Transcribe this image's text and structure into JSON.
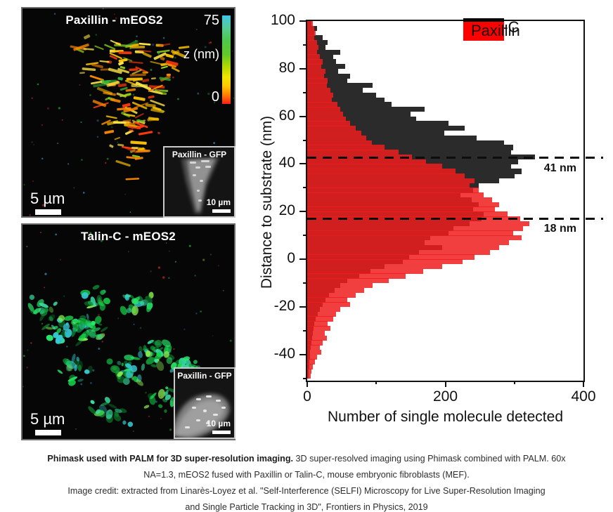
{
  "panels": {
    "paxillin": {
      "title": "Paxillin - mEOS2",
      "scale_bar": "5 µm",
      "colorbar": {
        "top_label": "75",
        "axis_label": "z (nm)",
        "bottom_label": "0"
      },
      "palette": [
        "#ff3b10",
        "#ff8a00",
        "#ffc400",
        "#ffe84a",
        "#9ade20",
        "#38b43c"
      ],
      "inset": {
        "title": "Paxillin - GFP",
        "scale_bar": "10 µm"
      }
    },
    "talin": {
      "title": "Talin-C - mEOS2",
      "scale_bar": "5 µm",
      "palette": [
        "#17d34a",
        "#2ae96c",
        "#0f9e38",
        "#39dca4",
        "#35c8d2",
        "#83e94e",
        "#0b7a2a"
      ],
      "inset": {
        "title": "Paxillin - GFP",
        "scale_bar": "10 µm"
      }
    },
    "noise_palette": [
      "#c03028",
      "#28a838",
      "#3888a8"
    ]
  },
  "chart_data": {
    "type": "bar",
    "orientation": "horizontal-histogram",
    "xlabel": "Number of single molecule detected",
    "ylabel": "Distance to substrate (nm)",
    "xlim": [
      0,
      400
    ],
    "ylim": [
      -51,
      100
    ],
    "bin_size_nm": 2,
    "z_start": 100,
    "grid": false,
    "legend_position": "top-right",
    "xticks": {
      "major": [
        0,
        200,
        400
      ],
      "minor": [
        100,
        300
      ]
    },
    "yticks": {
      "major": [
        100,
        80,
        60,
        40,
        20,
        0,
        -20,
        -40
      ],
      "minor": [
        90,
        70,
        50,
        30,
        10,
        -10,
        -30,
        -50
      ]
    },
    "series": [
      {
        "name": "Talin-C",
        "legend_color": "#000000",
        "bar_color": "#2b2b2b",
        "alpha": 1,
        "values": [
          6,
          14,
          10,
          22,
          30,
          26,
          48,
          38,
          42,
          55,
          45,
          62,
          58,
          95,
          80,
          100,
          112,
          122,
          170,
          150,
          158,
          205,
          228,
          198,
          245,
          285,
          298,
          295,
          330,
          305,
          295,
          310,
          300,
          278,
          248,
          240,
          222,
          238,
          248,
          240,
          255,
          252,
          235,
          212,
          205,
          178,
          170,
          195,
          162,
          148,
          138,
          112,
          92,
          75,
          58,
          48,
          40,
          32,
          26,
          22,
          18,
          15,
          12,
          10,
          9,
          8,
          7,
          6,
          5,
          4,
          4,
          3,
          3,
          2,
          2
        ]
      },
      {
        "name": "Paxillin",
        "legend_color": "#fe0000",
        "bar_color": "#ee1c1c",
        "alpha": 0.85,
        "values": [
          8,
          10,
          12,
          10,
          14,
          16,
          14,
          18,
          22,
          20,
          26,
          24,
          30,
          28,
          34,
          38,
          36,
          44,
          48,
          52,
          56,
          62,
          70,
          78,
          86,
          94,
          112,
          132,
          152,
          172,
          195,
          215,
          228,
          242,
          235,
          248,
          255,
          268,
          278,
          272,
          290,
          308,
          322,
          312,
          298,
          310,
          292,
          278,
          265,
          242,
          225,
          195,
          168,
          142,
          118,
          95,
          82,
          70,
          58,
          62,
          48,
          42,
          38,
          30,
          34,
          25,
          28,
          22,
          18,
          20,
          14,
          11,
          8,
          6,
          5
        ]
      }
    ],
    "annotations": [
      {
        "label": "41 nm",
        "line_z": 42.5
      },
      {
        "label": "18 nm",
        "line_z": 17
      }
    ]
  },
  "caption": {
    "lines": [
      {
        "bold": "Phimask used with PALM for 3D super-resolution imaging.",
        "rest": " 3D super-resolved imaging using Phimask combined with PALM. 60x"
      },
      {
        "rest": "NA=1.3, mEOS2 fused with Paxillin or Talin-C, mouse embryonic fibroblasts (MEF)."
      }
    ],
    "credit_lines": [
      "Image credit: extracted from Linarès-Loyez et al. \"Self-Interference (SELFI) Microscopy for Live Super-Resolution Imaging",
      "and Single Particle Tracking in 3D\", Frontiers in Physics, 2019"
    ]
  }
}
